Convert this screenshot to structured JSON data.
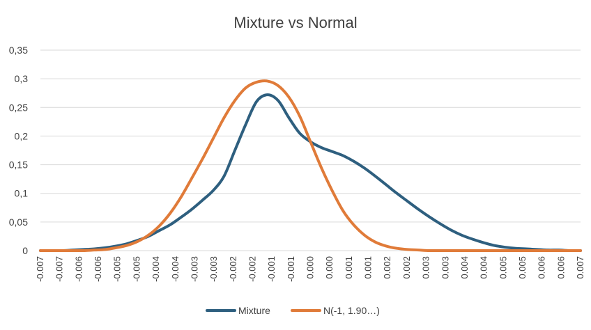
{
  "chart_data": {
    "type": "line",
    "title": "Mixture vs Normal",
    "xlabel": "",
    "ylabel": "",
    "ylim": [
      0,
      0.35
    ],
    "y_ticks": [
      "0",
      "0,05",
      "0,1",
      "0,15",
      "0,2",
      "0,25",
      "0,3",
      "0,35"
    ],
    "x_tick_labels": [
      "-0.007",
      "-0.007",
      "-0.006",
      "-0.006",
      "-0.005",
      "-0.005",
      "-0.004",
      "-0.004",
      "-0.003",
      "-0.003",
      "-0.002",
      "-0.002",
      "-0.001",
      "-0.001",
      "0.000",
      "0.000",
      "0.001",
      "0.001",
      "0.002",
      "0.002",
      "0.003",
      "0.003",
      "0.004",
      "0.004",
      "0.005",
      "0.005",
      "0.006",
      "0.006",
      "0.007"
    ],
    "grid": true,
    "legend_position": "bottom",
    "series": [
      {
        "name": "Mixture",
        "color": "#2e5f7f",
        "values": [
          0,
          0,
          0,
          0.001,
          0.002,
          0.003,
          0.005,
          0.008,
          0.012,
          0.018,
          0.025,
          0.035,
          0.045,
          0.058,
          0.072,
          0.088,
          0.105,
          0.13,
          0.175,
          0.22,
          0.26,
          0.272,
          0.262,
          0.232,
          0.205,
          0.19,
          0.18,
          0.173,
          0.166,
          0.156,
          0.144,
          0.13,
          0.115,
          0.1,
          0.086,
          0.072,
          0.059,
          0.047,
          0.036,
          0.027,
          0.02,
          0.014,
          0.009,
          0.006,
          0.004,
          0.003,
          0.002,
          0.001,
          0.001,
          0,
          0
        ]
      },
      {
        "name": "N(-1, 1.90…)",
        "color": "#e07b39",
        "values": [
          0,
          0,
          0,
          0,
          0,
          0.001,
          0.002,
          0.005,
          0.009,
          0.016,
          0.027,
          0.043,
          0.065,
          0.093,
          0.126,
          0.16,
          0.196,
          0.232,
          0.262,
          0.284,
          0.294,
          0.296,
          0.288,
          0.268,
          0.235,
          0.19,
          0.145,
          0.105,
          0.07,
          0.045,
          0.027,
          0.015,
          0.008,
          0.004,
          0.002,
          0.001,
          0,
          0,
          0,
          0,
          0,
          0,
          0,
          0,
          0,
          0,
          0,
          0,
          0,
          0,
          0
        ]
      }
    ]
  }
}
